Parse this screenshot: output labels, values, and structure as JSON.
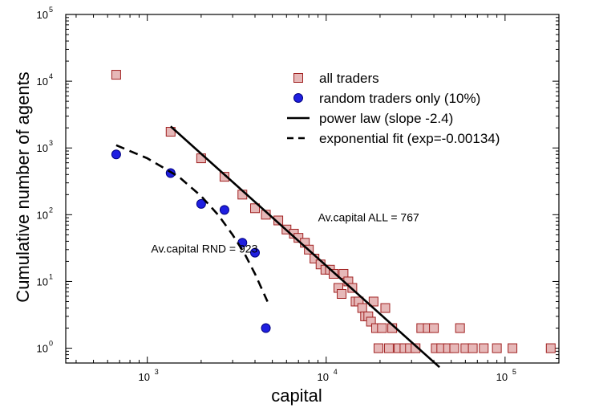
{
  "colors": {
    "square_fill": "#e6b8b8",
    "square_stroke": "#a02020",
    "dot_fill": "#1f1fe0",
    "dot_stroke": "#000080",
    "line": "#000000"
  },
  "chart_data": {
    "type": "scatter",
    "title": "",
    "xlabel": "capital",
    "ylabel": "Cumulative number of agents",
    "xscale": "log",
    "yscale": "log",
    "xlim": [
      350,
      200000
    ],
    "ylim": [
      0.6,
      100000
    ],
    "grid": false,
    "legend_position": "top-right",
    "x_ticks": [
      {
        "value": 1000,
        "base": "10",
        "exp": "3"
      },
      {
        "value": 10000,
        "base": "10",
        "exp": "4"
      },
      {
        "value": 100000,
        "base": "10",
        "exp": "5"
      }
    ],
    "y_ticks": [
      {
        "value": 1,
        "base": "10",
        "exp": "0"
      },
      {
        "value": 10,
        "base": "10",
        "exp": "1"
      },
      {
        "value": 100,
        "base": "10",
        "exp": "2"
      },
      {
        "value": 1000,
        "base": "10",
        "exp": "3"
      },
      {
        "value": 10000,
        "base": "10",
        "exp": "4"
      },
      {
        "value": 100000,
        "base": "10",
        "exp": "5"
      }
    ],
    "series": [
      {
        "name": "all traders",
        "kind": "scatter-square",
        "points": [
          [
            670,
            12500
          ],
          [
            1350,
            1750
          ],
          [
            2000,
            700
          ],
          [
            2700,
            370
          ],
          [
            3400,
            200
          ],
          [
            4000,
            125
          ],
          [
            4600,
            100
          ],
          [
            5400,
            82
          ],
          [
            6000,
            60
          ],
          [
            6600,
            52
          ],
          [
            7000,
            45
          ],
          [
            7600,
            38
          ],
          [
            8000,
            30
          ],
          [
            8600,
            22
          ],
          [
            9300,
            18
          ],
          [
            9900,
            15
          ],
          [
            10500,
            15
          ],
          [
            11000,
            13
          ],
          [
            11700,
            8
          ],
          [
            12200,
            6.5
          ],
          [
            12500,
            13
          ],
          [
            13300,
            10
          ],
          [
            14000,
            8
          ],
          [
            14600,
            5
          ],
          [
            15200,
            5
          ],
          [
            15900,
            4
          ],
          [
            16500,
            3
          ],
          [
            17200,
            3
          ],
          [
            17800,
            2.5
          ],
          [
            18400,
            5
          ],
          [
            19000,
            2
          ],
          [
            19600,
            1
          ],
          [
            20500,
            2
          ],
          [
            21400,
            4
          ],
          [
            22400,
            1
          ],
          [
            23400,
            2
          ],
          [
            25400,
            1
          ],
          [
            27400,
            1
          ],
          [
            29400,
            1
          ],
          [
            31600,
            1
          ],
          [
            34000,
            2
          ],
          [
            37000,
            2
          ],
          [
            40000,
            2
          ],
          [
            41000,
            1
          ],
          [
            44000,
            1
          ],
          [
            48000,
            1
          ],
          [
            52000,
            1
          ],
          [
            56000,
            2
          ],
          [
            60000,
            1
          ],
          [
            66000,
            1
          ],
          [
            76000,
            1
          ],
          [
            90000,
            1
          ],
          [
            110000,
            1
          ],
          [
            180000,
            1
          ]
        ]
      },
      {
        "name": "random traders only (10%)",
        "kind": "scatter-dot",
        "points": [
          [
            670,
            800
          ],
          [
            1350,
            420
          ],
          [
            2000,
            145
          ],
          [
            2700,
            118
          ],
          [
            3400,
            38
          ],
          [
            4000,
            27
          ],
          [
            4600,
            2
          ]
        ]
      },
      {
        "name": "power law (slope -2.4)",
        "kind": "line-solid",
        "points": [
          [
            1350,
            2100
          ],
          [
            43000,
            0.52
          ]
        ]
      },
      {
        "name": "exponential fit (exp=-0.00134)",
        "kind": "line-dashed",
        "points": [
          [
            670,
            1100
          ],
          [
            1000,
            700
          ],
          [
            1500,
            370
          ],
          [
            2000,
            190
          ],
          [
            2500,
            98
          ],
          [
            3000,
            50
          ],
          [
            3500,
            26
          ],
          [
            4000,
            13
          ],
          [
            4700,
            5
          ]
        ]
      }
    ],
    "annotations": [
      {
        "text": "Av.capital ALL = 767",
        "x": 9000,
        "y": 80
      },
      {
        "text": "Av.capital RND = 923",
        "x": 1050,
        "y": 27
      }
    ]
  }
}
